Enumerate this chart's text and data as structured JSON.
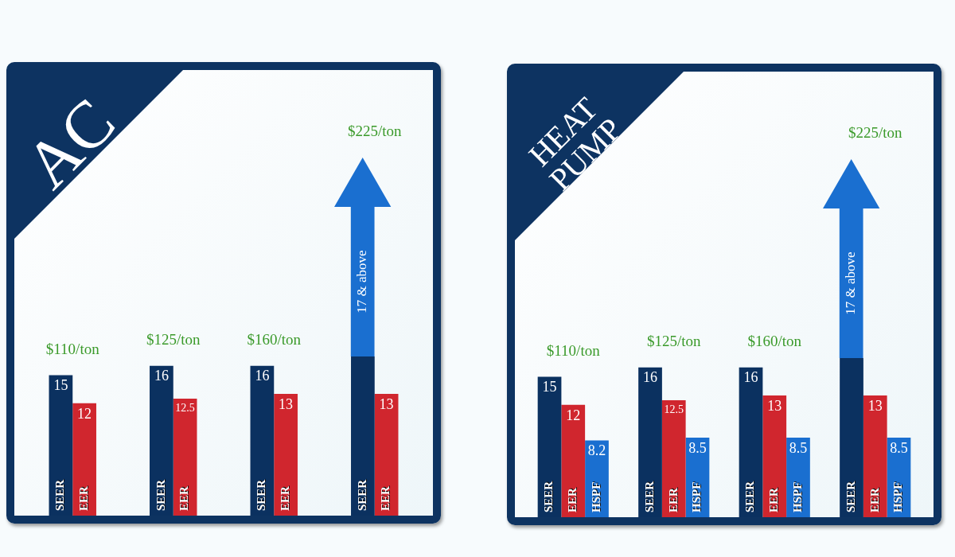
{
  "chart_data": [
    {
      "type": "bar",
      "title": "AC",
      "categories": [
        null,
        null,
        null,
        null
      ],
      "data_labels": true,
      "series": [
        {
          "name": "SEER",
          "color": "#0b3160",
          "values": [
            15,
            16,
            16,
            17
          ],
          "value_labels": [
            "15",
            "16",
            "16",
            "17 & above"
          ]
        },
        {
          "name": "EER",
          "color": "#d0262e",
          "values": [
            12,
            12.5,
            13,
            13
          ]
        }
      ],
      "annotations": [
        "$110/ton",
        "$125/ton",
        "$160/ton",
        "$225/ton"
      ]
    },
    {
      "type": "bar",
      "title": "HEAT PUMP",
      "categories": [
        null,
        null,
        null,
        null
      ],
      "data_labels": true,
      "series": [
        {
          "name": "SEER",
          "color": "#0b3160",
          "values": [
            15,
            16,
            16,
            17
          ],
          "value_labels": [
            "15",
            "16",
            "16",
            "17 & above"
          ]
        },
        {
          "name": "EER",
          "color": "#d0262e",
          "values": [
            12,
            12.5,
            13,
            13
          ]
        },
        {
          "name": "HSPF",
          "color": "#1a6fd0",
          "values": [
            8.2,
            8.5,
            8.5,
            8.5
          ]
        }
      ],
      "annotations": [
        "$110/ton",
        "$125/ton",
        "$160/ton",
        "$225/ton"
      ]
    }
  ]
}
